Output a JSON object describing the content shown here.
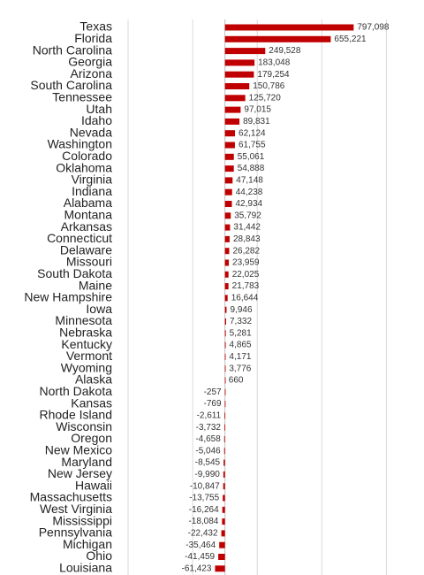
{
  "chart_data": {
    "type": "bar",
    "orientation": "horizontal",
    "color": "#c00000",
    "grid": true,
    "categories": [
      "Texas",
      "Florida",
      "North Carolina",
      "Georgia",
      "Arizona",
      "South Carolina",
      "Tennessee",
      "Utah",
      "Idaho",
      "Nevada",
      "Washington",
      "Colorado",
      "Oklahoma",
      "Virginia",
      "Indiana",
      "Alabama",
      "Montana",
      "Arkansas",
      "Connecticut",
      "Delaware",
      "Missouri",
      "South Dakota",
      "Maine",
      "New Hampshire",
      "Iowa",
      "Minnesota",
      "Nebraska",
      "Kentucky",
      "Vermont",
      "Wyoming",
      "Alaska",
      "North Dakota",
      "Kansas",
      "Rhode Island",
      "Wisconsin",
      "Oregon",
      "New Mexico",
      "Maryland",
      "New Jersey",
      "Hawaii",
      "Massachusetts",
      "West Virginia",
      "Mississippi",
      "Pennsylvania",
      "Michigan",
      "Ohio",
      "Louisiana"
    ],
    "values": [
      797098,
      655221,
      249528,
      183048,
      179254,
      150786,
      125720,
      97015,
      89831,
      62124,
      61755,
      55061,
      54888,
      47148,
      44238,
      42934,
      35792,
      31442,
      28843,
      26282,
      23959,
      22025,
      21783,
      16644,
      9946,
      7332,
      5281,
      4865,
      4171,
      3776,
      660,
      -257,
      -769,
      -2611,
      -3732,
      -4658,
      -5046,
      -8545,
      -9990,
      -10847,
      -13755,
      -16264,
      -18084,
      -22432,
      -35464,
      -41459,
      -61423
    ],
    "value_labels": [
      "797,098",
      "655,221",
      "249,528",
      "183,048",
      "179,254",
      "150,786",
      "125,720",
      "97,015",
      "89,831",
      "62,124",
      "61,755",
      "55,061",
      "54,888",
      "47,148",
      "44,238",
      "42,934",
      "35,792",
      "31,442",
      "28,843",
      "26,282",
      "23,959",
      "22,025",
      "21,783",
      "16,644",
      "9,946",
      "7,332",
      "5,281",
      "4,865",
      "4,171",
      "3,776",
      "660",
      "-257",
      "-769",
      "-2,611",
      "-3,732",
      "-4,658",
      "-5,046",
      "-8,545",
      "-9,990",
      "-10,847",
      "-13,755",
      "-16,264",
      "-18,084",
      "-22,432",
      "-35,464",
      "-41,459",
      "-61,423"
    ],
    "xlim": [
      -600000,
      1200000
    ],
    "xticks": [
      -600000,
      -200000,
      200000,
      600000,
      1000000
    ]
  }
}
